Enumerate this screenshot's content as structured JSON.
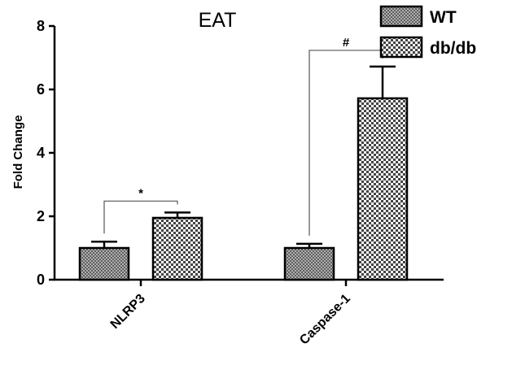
{
  "chart_data": {
    "type": "bar",
    "title": "EAT",
    "xlabel": "",
    "ylabel": "Fold Change",
    "ylim": [
      0,
      8
    ],
    "yticks": [
      0,
      2,
      4,
      6,
      8
    ],
    "categories": [
      "NLRP3",
      "Caspase-1"
    ],
    "series": [
      {
        "name": "WT",
        "values": [
          1.0,
          1.0
        ],
        "errors": [
          0.2,
          0.13
        ],
        "pattern": "checker-fine",
        "color": "#8a8a8a"
      },
      {
        "name": "db/db",
        "values": [
          1.95,
          5.72
        ],
        "errors": [
          0.17,
          1.0
        ],
        "pattern": "checker-coarse",
        "color": "#bdbdbd"
      }
    ],
    "significance": [
      {
        "category": "NLRP3",
        "label": "*"
      },
      {
        "category": "Caspase-1",
        "label": "#"
      }
    ],
    "legend": {
      "placement": "top-right"
    },
    "grid": false
  }
}
